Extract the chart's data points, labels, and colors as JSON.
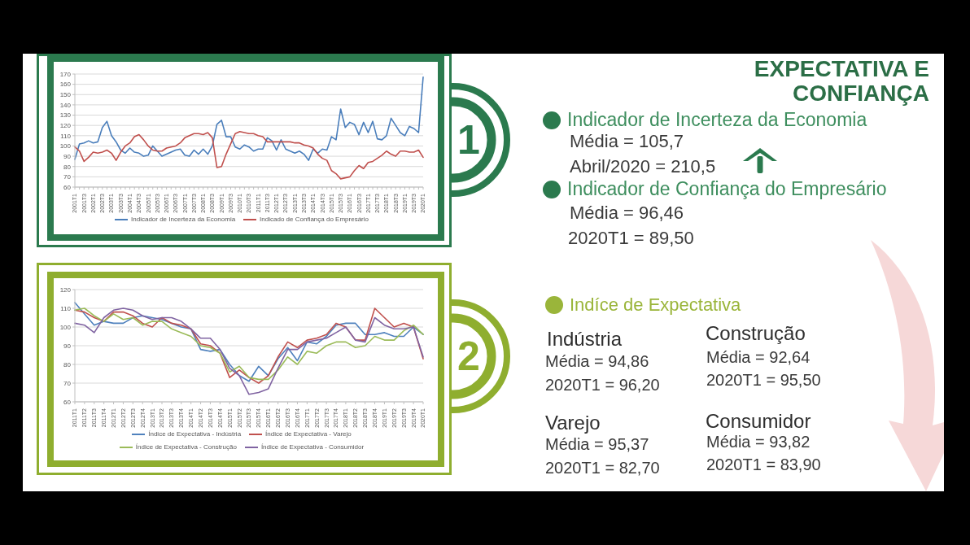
{
  "chart_data": [
    {
      "type": "line",
      "categories": [
        "2001T1",
        null,
        "2001T3",
        null,
        "2002T1",
        null,
        "2002T3",
        null,
        "2003T1",
        null,
        "2003T3",
        null,
        "2004T1",
        null,
        "2004T3",
        null,
        "2005T1",
        null,
        "2005T3",
        null,
        "2006T1",
        null,
        "2006T3",
        null,
        "2007T1",
        null,
        "2007T3",
        null,
        "2008T1",
        null,
        "2008T3",
        null,
        "2009T1",
        null,
        "2009T3",
        null,
        "2010T1",
        null,
        "2010T3",
        null,
        "2011T1",
        null,
        "2011T3",
        null,
        "2012T1",
        null,
        "2012T3",
        null,
        "2013T1",
        null,
        "2013T3",
        null,
        "2014T1",
        null,
        "2014T3",
        null,
        "2015T1",
        null,
        "2015T3",
        null,
        "2016T1",
        null,
        "2016T3",
        null,
        "2017T1",
        null,
        "2017T3",
        null,
        "2018T1",
        null,
        "2018T3",
        null,
        "2019T1",
        null,
        "2019T3",
        null,
        "2020T1"
      ],
      "series": [
        {
          "name": "Indicador de Incerteza da Economia",
          "color": "#4a7ebb",
          "values": [
            87,
            102,
            103,
            105,
            103,
            104,
            118,
            124,
            110,
            104,
            96,
            93,
            98,
            94,
            93,
            90,
            91,
            100,
            95,
            90,
            92,
            94,
            96,
            97,
            91,
            90,
            96,
            92,
            97,
            92,
            100,
            121,
            125,
            109,
            109,
            99,
            97,
            101,
            99,
            95,
            97,
            97,
            108,
            105,
            96,
            106,
            97,
            95,
            93,
            95,
            92,
            86,
            97,
            93,
            97,
            96,
            109,
            106,
            136,
            118,
            123,
            121,
            111,
            123,
            113,
            124,
            107,
            106,
            110,
            127,
            120,
            113,
            110,
            119,
            117,
            113,
            167
          ]
        },
        {
          "name": "Indicado de Confiança do Empresário",
          "color": "#c0504d",
          "values": [
            99,
            95,
            85,
            89,
            94,
            93,
            94,
            96,
            93,
            86,
            94,
            100,
            103,
            109,
            111,
            106,
            100,
            96,
            95,
            95,
            98,
            99,
            100,
            103,
            108,
            110,
            112,
            112,
            111,
            113,
            108,
            79,
            80,
            92,
            102,
            112,
            114,
            113,
            112,
            112,
            110,
            109,
            104,
            104,
            104,
            104,
            104,
            104,
            103,
            103,
            101,
            100,
            98,
            92,
            88,
            86,
            76,
            73,
            68,
            69,
            70,
            76,
            81,
            78,
            84,
            85,
            88,
            91,
            95,
            92,
            90,
            95,
            95,
            94,
            94,
            96,
            89
          ]
        }
      ],
      "ylim": [
        60,
        170
      ],
      "yticks": [
        60,
        70,
        80,
        90,
        100,
        110,
        120,
        130,
        140,
        150,
        160,
        170
      ],
      "grid": "y",
      "legend": "bottom"
    },
    {
      "type": "other",
      "title": "EXPECTATIVA E CONFIANÇA",
      "annotations": [
        "1",
        "Indicador de Incerteza da Economia",
        "Média = 105,7",
        "Abril/2020 = 210,5",
        "Indicador de Confiança do Empresário",
        "Média = 96,46",
        "2020T1 = 89,50"
      ]
    },
    {
      "type": "line",
      "categories": [
        "2011T1",
        "2011T2",
        "2011T3",
        "2011T4",
        "2012T1",
        "2012T2",
        "2012T3",
        "2012T4",
        "2013T1",
        "2013T2",
        "2013T3",
        "2013T4",
        "2014T1",
        "2014T2",
        "2014T3",
        "2014T4",
        "2015T1",
        "2015T2",
        "2015T3",
        "2015T4",
        "2016T1",
        "2016T2",
        "2016T3",
        "2016T4",
        "2017T1",
        "2017T2",
        "2017T3",
        "2017T4",
        "2018T1",
        "2018T2",
        "2018T3",
        "2018T4",
        "2019T1",
        "2019T2",
        "2019T3",
        "2019T4",
        "2020T1"
      ],
      "series": [
        {
          "name": "Índice de Expectativa - Indústria",
          "color": "#4f81bd",
          "values": [
            113,
            107,
            101,
            103,
            102,
            102,
            105,
            106,
            105,
            104,
            102,
            100,
            99,
            88,
            87,
            88,
            80,
            74,
            71,
            79,
            74,
            83,
            89,
            82,
            92,
            91,
            95,
            101,
            102,
            102,
            96,
            96,
            97,
            95,
            95,
            100,
            96
          ]
        },
        {
          "name": "Índice de Expectativa - Varejo",
          "color": "#c0504d",
          "values": [
            109,
            108,
            105,
            103,
            108,
            108,
            106,
            102,
            100,
            105,
            102,
            101,
            99,
            91,
            90,
            86,
            73,
            77,
            73,
            70,
            74,
            84,
            92,
            89,
            93,
            94,
            96,
            102,
            100,
            93,
            93,
            110,
            105,
            100,
            102,
            100,
            83
          ]
        },
        {
          "name": "Índice de Expectativa - Construção",
          "color": "#9bbb59",
          "values": [
            109,
            110,
            106,
            103,
            107,
            104,
            105,
            101,
            103,
            103,
            99,
            97,
            95,
            90,
            89,
            86,
            76,
            79,
            73,
            72,
            72,
            77,
            84,
            80,
            87,
            86,
            90,
            92,
            92,
            89,
            90,
            95,
            93,
            93,
            98,
            101,
            96
          ]
        },
        {
          "name": "Índice de Expectativa - Consumidor",
          "color": "#8064a2",
          "values": [
            102,
            101,
            97,
            105,
            109,
            110,
            109,
            106,
            104,
            105,
            105,
            103,
            99,
            94,
            94,
            88,
            78,
            74,
            64,
            65,
            67,
            78,
            88,
            88,
            92,
            93,
            94,
            97,
            100,
            93,
            92,
            105,
            101,
            99,
            99,
            100,
            84
          ]
        }
      ],
      "ylim": [
        60,
        120
      ],
      "yticks": [
        60,
        70,
        80,
        90,
        100,
        110,
        120
      ],
      "grid": "y",
      "legend": "bottom"
    },
    {
      "type": "other",
      "annotations": [
        "2",
        "Indíce de Expectativa",
        "Indústria",
        "Média = 94,86",
        "2020T1 = 96,20",
        "Construção",
        "Média = 92,64",
        "2020T1 = 95,50",
        "Varejo",
        "Média = 95,37",
        "2020T1 = 82,70",
        "Consumidor",
        "Média = 93,82",
        "2020T1 = 83,90"
      ]
    }
  ]
}
